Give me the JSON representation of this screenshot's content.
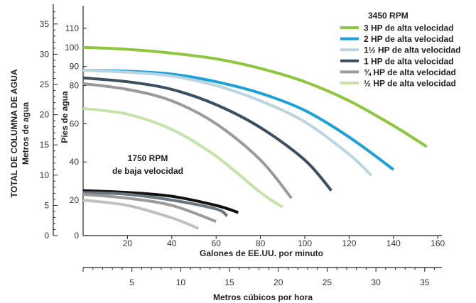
{
  "chart_data": {
    "type": "line",
    "xlabel": "Galones de EE.UU. por minuto",
    "ylabel": "Pies de agua",
    "xlim": [
      0,
      160
    ],
    "ylim": [
      0,
      110
    ],
    "xticks": [
      "20",
      "40",
      "60",
      "80",
      "100",
      "120",
      "140",
      "160"
    ],
    "yticks": [
      "20",
      "40",
      "60",
      "80",
      "90",
      "100",
      "110"
    ],
    "y_secondary": {
      "label": "TOTAL DE COLUMNA DE AGUA",
      "sublabel": "Metros de agua",
      "ticks": [
        "0",
        "5",
        "10",
        "15",
        "20",
        "25",
        "30",
        "35"
      ]
    },
    "y_primary_zero": "0",
    "x_secondary": {
      "label": "Metros cúbicos por hora",
      "ticks": [
        "5",
        "10",
        "15",
        "20",
        "25",
        "30",
        "35"
      ]
    },
    "legend_title": "3450 RPM",
    "legend_position": "top-right",
    "low_speed_label": [
      "1750 RPM",
      "de baja velocidad"
    ],
    "series": [
      {
        "name": "3 HP de alta velocidad",
        "color": "#8dc63f",
        "x": [
          0,
          20,
          40,
          60,
          80,
          100,
          120,
          140,
          155
        ],
        "y": [
          100,
          99,
          97,
          94,
          89,
          82,
          72,
          59,
          48
        ]
      },
      {
        "name": "2 HP de alta velocidad",
        "color": "#1ba0d8",
        "x": [
          0,
          20,
          40,
          60,
          80,
          100,
          120,
          140
        ],
        "y": [
          88,
          87.5,
          86,
          82,
          76,
          67,
          53,
          36
        ]
      },
      {
        "name": "1½ HP de alta velocidad",
        "color": "#bcd4e0",
        "x": [
          0,
          20,
          40,
          60,
          80,
          100,
          120,
          130
        ],
        "y": [
          88,
          87,
          85,
          80,
          72,
          61,
          44,
          33
        ]
      },
      {
        "name": "1 HP de alta velocidad",
        "color": "#3b4f5e",
        "x": [
          0,
          20,
          40,
          60,
          80,
          100,
          112
        ],
        "y": [
          84,
          82,
          78,
          70,
          58,
          41,
          25
        ]
      },
      {
        "name": "¾ HP de alta velocidad",
        "color": "#9a9a9a",
        "x": [
          0,
          20,
          40,
          60,
          80,
          94
        ],
        "y": [
          81,
          78,
          72,
          60,
          41,
          21
        ]
      },
      {
        "name": "½ HP de alta velocidad",
        "color": "#c5e2a8",
        "x": [
          0,
          20,
          40,
          60,
          80,
          90
        ],
        "y": [
          68,
          65,
          57,
          43,
          24,
          16
        ]
      },
      {
        "name": "",
        "color": "#111111",
        "x": [
          0,
          20,
          40,
          60,
          70
        ],
        "y": [
          25,
          24,
          22,
          17,
          13
        ]
      },
      {
        "name": "",
        "color": "#6a7680",
        "x": [
          0,
          20,
          40,
          60,
          65
        ],
        "y": [
          24,
          23,
          20,
          15,
          11
        ]
      },
      {
        "name": "",
        "color": "#9a9a9a",
        "x": [
          0,
          20,
          40,
          60
        ],
        "y": [
          23,
          21,
          17,
          8
        ]
      },
      {
        "name": "",
        "color": "#c0c0c0",
        "x": [
          0,
          20,
          40,
          52
        ],
        "y": [
          20,
          17,
          10,
          4
        ]
      }
    ]
  }
}
